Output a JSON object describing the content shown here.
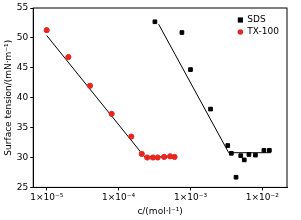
{
  "chart_data": {
    "type": "scatter",
    "x_label": "c/(mol·l⁻¹)",
    "y_label": "Surface tension/(mN·m⁻¹)",
    "log": "x",
    "grid": false,
    "legend": "upper right",
    "xlim": [
      6.5e-06,
      0.022
    ],
    "xticks": [
      {
        "value": 1e-05,
        "label": "1×10⁻⁵"
      },
      {
        "value": 0.0001,
        "label": "1×10⁻⁴"
      },
      {
        "value": 0.001,
        "label": "1×10⁻³"
      },
      {
        "value": 0.01,
        "label": "1×10⁻²"
      }
    ],
    "ylim": [
      25,
      55
    ],
    "yticks": [
      25,
      30,
      35,
      40,
      45,
      50,
      55
    ],
    "series": [
      {
        "name": "SDS",
        "color": "#000000",
        "marker": "square",
        "x": [
          0.00032,
          0.00076,
          0.001,
          0.0019,
          0.0033,
          0.0037,
          0.0043,
          0.005,
          0.0056,
          0.0065,
          0.008,
          0.0105,
          0.0125
        ],
        "values": [
          52.7,
          50.9,
          44.7,
          38.1,
          32.0,
          30.7,
          26.7,
          30.3,
          29.6,
          30.5,
          30.4,
          31.2,
          31.2
        ],
        "fit": {
          "x": [
            0.00036,
            0.0034,
            0.013
          ],
          "values": [
            52.3,
            30.8,
            30.8
          ]
        }
      },
      {
        "name": "TX-100",
        "color": "#e8251f",
        "marker": "circle",
        "x": [
          1e-05,
          2e-05,
          4e-05,
          8e-05,
          0.00015,
          0.00021,
          0.00025,
          0.0003,
          0.00035,
          0.00043,
          0.00052,
          0.0006
        ],
        "values": [
          51.3,
          46.8,
          42.0,
          37.3,
          33.5,
          30.6,
          30.0,
          30.0,
          30.0,
          30.1,
          30.2,
          30.1
        ],
        "fit": {
          "x": [
            1e-05,
            0.00023,
            0.00065
          ],
          "values": [
            50.4,
            30.1,
            30.1
          ]
        }
      }
    ]
  }
}
